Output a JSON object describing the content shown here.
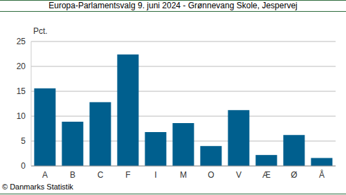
{
  "chart_data": {
    "type": "bar",
    "title": "Europa-Parlamentsvalg 9. juni 2024 - Grønnevang Skole, Jespervej",
    "y_label": "Pct.",
    "source": "© Danmarks Statistik",
    "categories": [
      "A",
      "B",
      "C",
      "F",
      "I",
      "M",
      "O",
      "V",
      "Æ",
      "Ø",
      "Å"
    ],
    "values": [
      15.6,
      8.9,
      12.8,
      22.4,
      6.8,
      8.6,
      4.0,
      11.2,
      2.2,
      6.2,
      1.6
    ],
    "color": "#005f8e",
    "ylim": [
      0,
      25
    ],
    "yticks": [
      0,
      5,
      10,
      15,
      20,
      25
    ],
    "grid": true
  }
}
